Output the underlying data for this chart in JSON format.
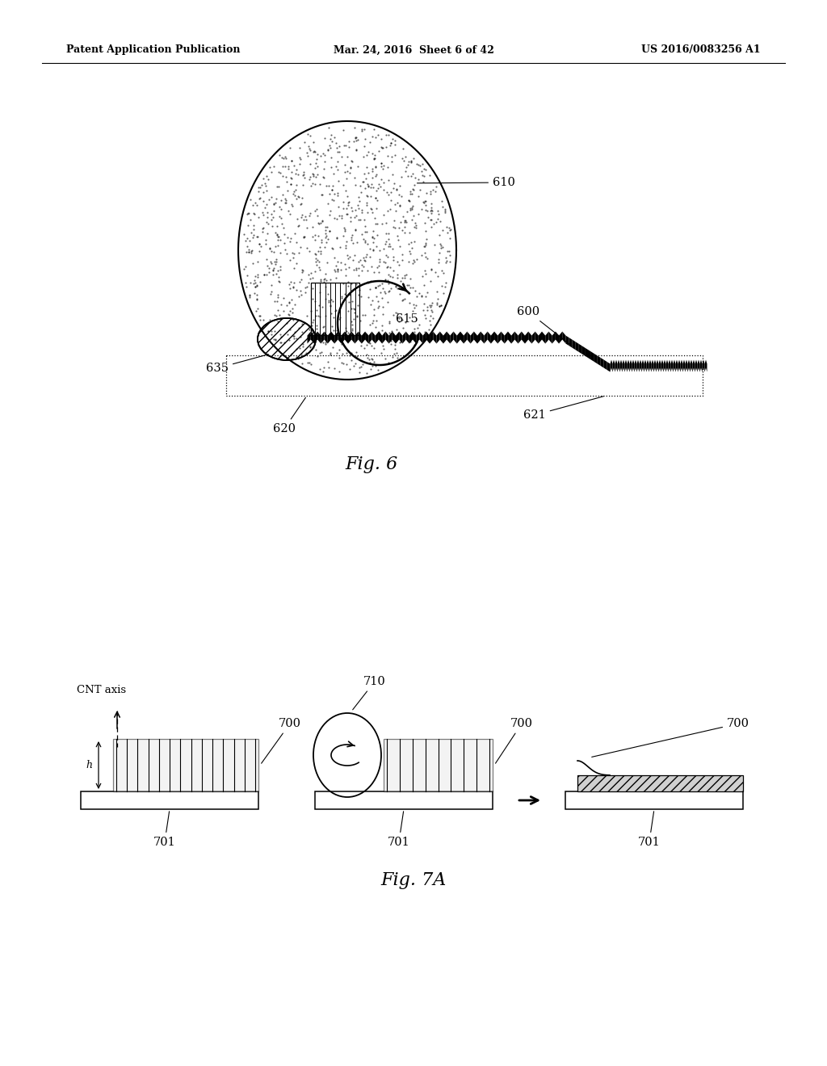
{
  "bg_color": "#ffffff",
  "header_left": "Patent Application Publication",
  "header_mid": "Mar. 24, 2016  Sheet 6 of 42",
  "header_right": "US 2016/0083256 A1",
  "fig6_label": "Fig. 6",
  "fig7a_label": "Fig. 7A",
  "fig_width": 10.24,
  "fig_height": 13.2,
  "fig_dpi": 100
}
